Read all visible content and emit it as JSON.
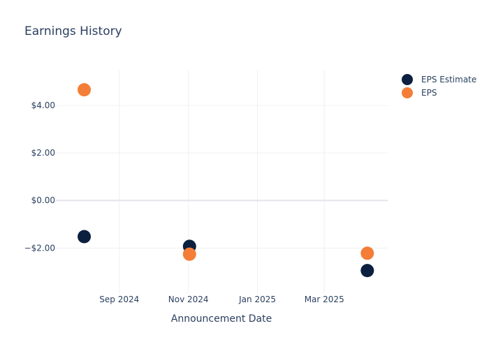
{
  "chart_data": {
    "type": "scatter",
    "title": "Earnings History",
    "xlabel": "Announcement Date",
    "ylabel": "",
    "x_ticks": [
      {
        "date": "2024-09-01",
        "label": "Sep 2024"
      },
      {
        "date": "2024-11-01",
        "label": "Nov 2024"
      },
      {
        "date": "2025-01-01",
        "label": "Jan 2025"
      },
      {
        "date": "2025-03-01",
        "label": "Mar 2025"
      }
    ],
    "y_ticks": [
      {
        "value": 4,
        "label": "$4.00"
      },
      {
        "value": 2,
        "label": "$2.00"
      },
      {
        "value": 0,
        "label": "$0.00"
      },
      {
        "value": -2,
        "label": "−$2.00"
      }
    ],
    "xlim": [
      "2024-07-07",
      "2025-04-26"
    ],
    "ylim": [
      -3.9,
      5.5
    ],
    "grid": true,
    "legend_position": "top-right",
    "series": [
      {
        "name": "EPS Estimate",
        "color": "#0b1f3f",
        "points": [
          {
            "x": "2024-08-01",
            "y": -1.52
          },
          {
            "x": "2024-11-02",
            "y": -1.93
          },
          {
            "x": "2025-04-08",
            "y": -2.95
          }
        ]
      },
      {
        "name": "EPS",
        "color": "#f47e37",
        "points": [
          {
            "x": "2024-08-01",
            "y": 4.66
          },
          {
            "x": "2024-11-02",
            "y": -2.26
          },
          {
            "x": "2025-04-08",
            "y": -2.22
          }
        ]
      }
    ]
  }
}
